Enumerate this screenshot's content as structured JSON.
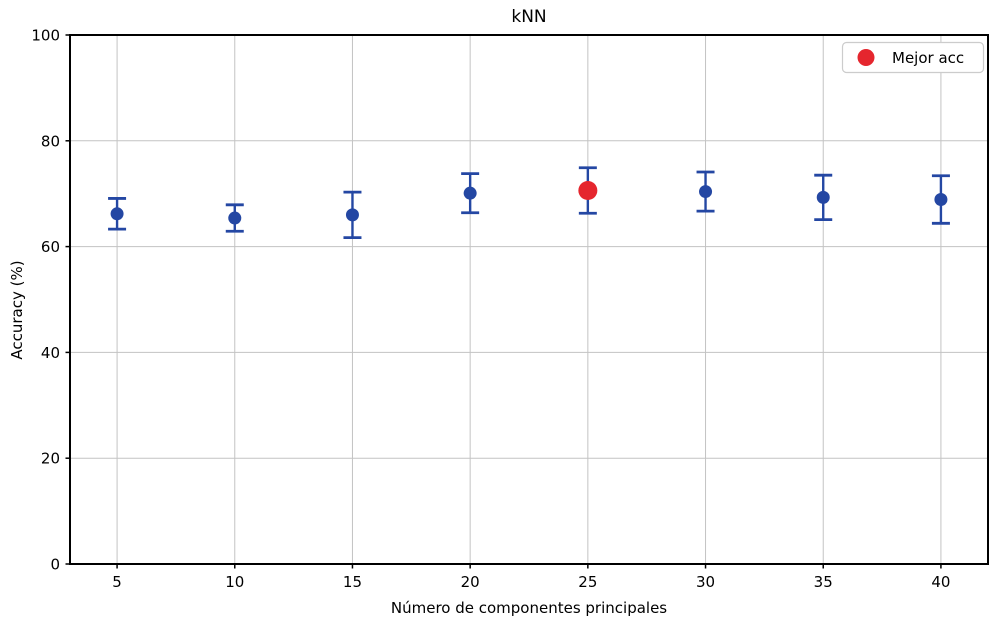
{
  "chart_data": {
    "type": "scatter",
    "title": "kNN",
    "xlabel": "Número de componentes principales",
    "ylabel": "Accuracy (%)",
    "xlim": [
      3,
      42
    ],
    "ylim": [
      0,
      100
    ],
    "x_ticks": [
      5,
      10,
      15,
      20,
      25,
      30,
      35,
      40
    ],
    "y_ticks": [
      0,
      20,
      40,
      60,
      80,
      100
    ],
    "grid": true,
    "series": [
      {
        "name": "accuracy-vs-components",
        "type": "errorbar",
        "color": "#2447a3",
        "marker": "circle",
        "x": [
          5,
          10,
          15,
          20,
          25,
          30,
          35,
          40
        ],
        "y": [
          66.2,
          65.4,
          66.0,
          70.1,
          70.6,
          70.4,
          69.3,
          68.9
        ],
        "yerr": [
          2.9,
          2.5,
          4.3,
          3.7,
          4.3,
          3.7,
          4.2,
          4.5
        ]
      },
      {
        "name": "best-accuracy",
        "type": "scatter",
        "color": "#e5262e",
        "marker": "circle-large",
        "x": [
          25
        ],
        "y": [
          70.6
        ]
      }
    ],
    "legend": {
      "position": "upper-right",
      "entries": [
        {
          "label": "Mejor acc",
          "marker_color": "#e5262e"
        }
      ]
    }
  },
  "style": {
    "grid_color": "#c3c3c3",
    "axis_color": "#000000",
    "background": "#ffffff",
    "legend_border": "#cccccc"
  }
}
